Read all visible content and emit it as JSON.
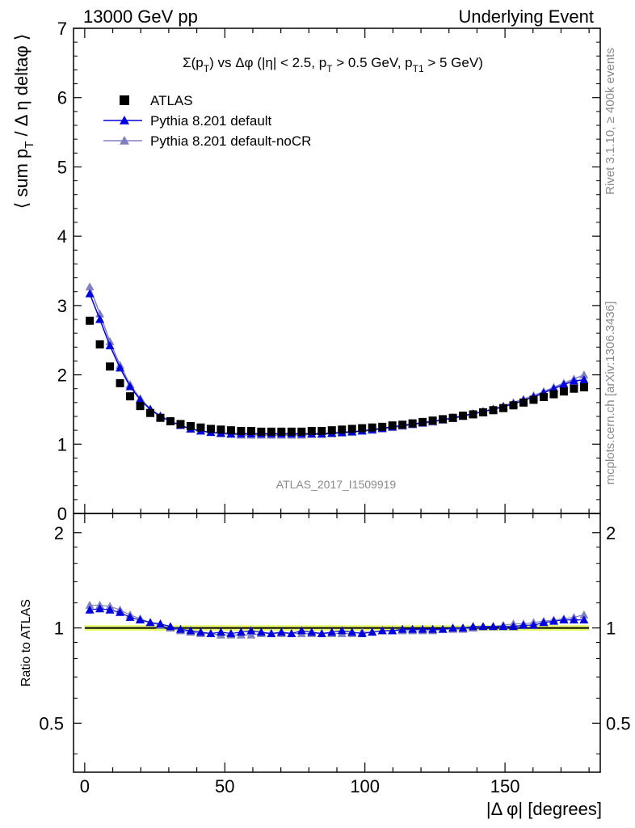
{
  "header": {
    "left": "13000 GeV pp",
    "right": "Underlying Event"
  },
  "side_labels": {
    "rivet": "Rivet 3.1.10, ≥ 400k events",
    "mcplots": "mcplots.cern.ch [arXiv:1306.3436]"
  },
  "watermark": "ATLAS_2017_I1509919",
  "chart_data": [
    {
      "type": "scatter",
      "panel": "main",
      "title": "Σ(p_T) vs Δφ (|η| < 2.5, p_T > 0.5 GeV, p_T1 > 5 GeV)",
      "ylabel": "⟨ sum p_T / Δ η deltaφ ⟩",
      "xlim": [
        -4,
        184
      ],
      "ylim": [
        0,
        7
      ],
      "y_ticks": [
        0,
        1,
        2,
        3,
        4,
        5,
        6,
        7
      ],
      "legend_position": "top-left",
      "x": [
        1.8,
        5.4,
        9.0,
        12.6,
        16.2,
        19.8,
        23.4,
        27.0,
        30.6,
        34.2,
        37.8,
        41.4,
        45.0,
        48.6,
        52.2,
        55.8,
        59.4,
        63.0,
        66.6,
        70.2,
        73.8,
        77.4,
        81.0,
        84.6,
        88.2,
        91.8,
        95.4,
        99.0,
        102.6,
        106.2,
        109.8,
        113.4,
        117.0,
        120.6,
        124.2,
        127.8,
        131.4,
        135.0,
        138.6,
        142.2,
        145.8,
        149.4,
        153.0,
        156.6,
        160.2,
        163.8,
        167.4,
        171.0,
        174.6,
        178.2
      ],
      "series": [
        {
          "name": "ATLAS",
          "color": "#000000",
          "marker": "square",
          "values": [
            2.78,
            2.44,
            2.12,
            1.88,
            1.69,
            1.55,
            1.45,
            1.38,
            1.33,
            1.29,
            1.26,
            1.24,
            1.22,
            1.21,
            1.2,
            1.19,
            1.19,
            1.18,
            1.18,
            1.18,
            1.18,
            1.18,
            1.19,
            1.19,
            1.2,
            1.21,
            1.22,
            1.23,
            1.24,
            1.25,
            1.27,
            1.28,
            1.3,
            1.32,
            1.34,
            1.36,
            1.38,
            1.41,
            1.43,
            1.46,
            1.49,
            1.52,
            1.56,
            1.6,
            1.64,
            1.68,
            1.72,
            1.76,
            1.8,
            1.82
          ]
        },
        {
          "name": "Pythia 8.201 default",
          "color": "#0000dd",
          "marker": "triangle",
          "values": [
            3.17,
            2.8,
            2.42,
            2.1,
            1.83,
            1.64,
            1.5,
            1.4,
            1.33,
            1.27,
            1.22,
            1.19,
            1.17,
            1.16,
            1.15,
            1.15,
            1.15,
            1.15,
            1.15,
            1.15,
            1.15,
            1.15,
            1.15,
            1.15,
            1.16,
            1.17,
            1.18,
            1.19,
            1.21,
            1.23,
            1.25,
            1.27,
            1.29,
            1.31,
            1.33,
            1.35,
            1.38,
            1.41,
            1.44,
            1.47,
            1.5,
            1.54,
            1.58,
            1.63,
            1.68,
            1.74,
            1.8,
            1.86,
            1.91,
            1.93
          ]
        },
        {
          "name": "Pythia 8.201 default-noCR",
          "color": "#8080c0",
          "marker": "triangle",
          "values": [
            3.27,
            2.88,
            2.48,
            2.14,
            1.86,
            1.66,
            1.51,
            1.41,
            1.33,
            1.27,
            1.22,
            1.19,
            1.17,
            1.15,
            1.14,
            1.13,
            1.13,
            1.13,
            1.13,
            1.13,
            1.13,
            1.13,
            1.14,
            1.14,
            1.15,
            1.16,
            1.17,
            1.19,
            1.2,
            1.22,
            1.24,
            1.26,
            1.28,
            1.3,
            1.32,
            1.35,
            1.37,
            1.4,
            1.43,
            1.47,
            1.51,
            1.55,
            1.6,
            1.65,
            1.7,
            1.76,
            1.82,
            1.88,
            1.94,
            2.0
          ]
        }
      ]
    },
    {
      "type": "scatter",
      "panel": "ratio",
      "ylabel": "Ratio to ATLAS",
      "xlabel": "|Δ φ| [degrees]",
      "xlim": [
        -4,
        184
      ],
      "ylim": [
        0.35,
        2.3
      ],
      "y_ticks": [
        0.5,
        1,
        2
      ],
      "x_ticks": [
        0,
        50,
        100,
        150
      ],
      "band": {
        "center": 1.0,
        "half_width": 0.02,
        "color": "#e8f96a"
      },
      "series": [
        {
          "name": "Pythia 8.201 default",
          "color": "#0000dd",
          "marker": "triangle",
          "values": [
            1.14,
            1.15,
            1.14,
            1.12,
            1.08,
            1.06,
            1.04,
            1.03,
            1.01,
            0.99,
            0.98,
            0.97,
            0.96,
            0.97,
            0.96,
            0.97,
            0.98,
            0.97,
            0.96,
            0.97,
            0.96,
            0.98,
            0.97,
            0.96,
            0.97,
            0.98,
            0.97,
            0.96,
            0.97,
            0.98,
            0.98,
            0.99,
            0.99,
            0.99,
            0.99,
            0.99,
            1.0,
            1.0,
            1.01,
            1.01,
            1.01,
            1.01,
            1.01,
            1.02,
            1.02,
            1.04,
            1.05,
            1.06,
            1.06,
            1.06
          ]
        },
        {
          "name": "Pythia 8.201 default-noCR",
          "color": "#8080c0",
          "marker": "triangle",
          "values": [
            1.18,
            1.18,
            1.17,
            1.14,
            1.1,
            1.07,
            1.04,
            1.02,
            1.0,
            0.98,
            0.97,
            0.96,
            0.96,
            0.95,
            0.95,
            0.95,
            0.95,
            0.96,
            0.96,
            0.96,
            0.96,
            0.96,
            0.96,
            0.96,
            0.96,
            0.96,
            0.96,
            0.97,
            0.97,
            0.98,
            0.98,
            0.98,
            0.98,
            0.98,
            0.98,
            0.99,
            0.99,
            0.99,
            1.0,
            1.01,
            1.01,
            1.02,
            1.03,
            1.03,
            1.04,
            1.05,
            1.06,
            1.07,
            1.08,
            1.1
          ]
        }
      ]
    }
  ]
}
